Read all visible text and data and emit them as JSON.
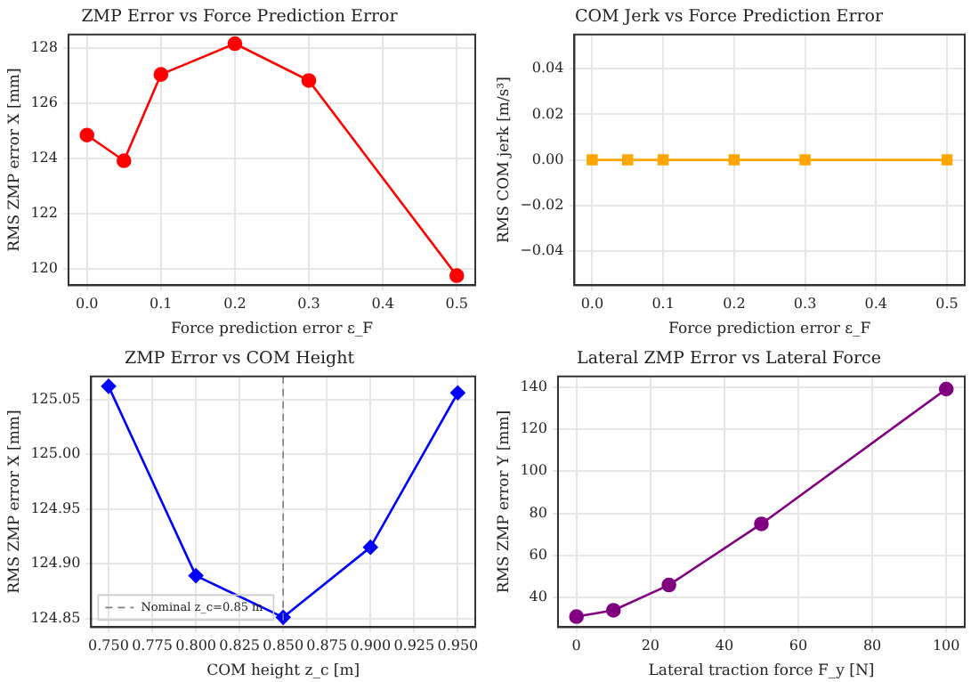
{
  "chart_data": [
    {
      "type": "line",
      "title": "ZMP Error vs Force Prediction Error",
      "xlabel": "Force prediction error ε_F",
      "ylabel": "RMS ZMP error X [mm]",
      "x": [
        0,
        0.05,
        0.1,
        0.2,
        0.3,
        0.5
      ],
      "series": [
        {
          "color": "#ff0000",
          "values": [
            124.85,
            123.92,
            127.05,
            128.17,
            126.83,
            119.75
          ]
        }
      ],
      "xlim": [
        -0.025,
        0.525
      ],
      "xticks": [
        {
          "value": 0,
          "label": "0.0"
        },
        {
          "value": 0.1,
          "label": "0.1"
        },
        {
          "value": 0.2,
          "label": "0.2"
        },
        {
          "value": 0.3,
          "label": "0.3"
        },
        {
          "value": 0.4,
          "label": "0.4"
        },
        {
          "value": 0.5,
          "label": "0.5"
        }
      ],
      "ylim": [
        119.4,
        128.5
      ],
      "yticks": [
        120,
        122,
        124,
        126,
        128
      ],
      "grid": true,
      "marker": "circle",
      "line_style": "solid"
    },
    {
      "type": "line",
      "title": "COM Jerk vs Force Prediction Error",
      "xlabel": "Force prediction error ε_F",
      "ylabel": "RMS COM jerk [m/s³]",
      "x": [
        0,
        0.05,
        0.1,
        0.2,
        0.3,
        0.5
      ],
      "series": [
        {
          "color": "#ffa500",
          "values": [
            0,
            0,
            0,
            0,
            0,
            0
          ]
        }
      ],
      "xlim": [
        -0.025,
        0.525
      ],
      "xticks": [
        {
          "value": 0,
          "label": "0.0"
        },
        {
          "value": 0.1,
          "label": "0.1"
        },
        {
          "value": 0.2,
          "label": "0.2"
        },
        {
          "value": 0.3,
          "label": "0.3"
        },
        {
          "value": 0.4,
          "label": "0.4"
        },
        {
          "value": 0.5,
          "label": "0.5"
        }
      ],
      "ylim": [
        -0.055,
        0.055
      ],
      "yticks": [
        {
          "value": -0.04,
          "label": "−0.04"
        },
        {
          "value": -0.02,
          "label": "−0.02"
        },
        {
          "value": 0,
          "label": "0.00"
        },
        {
          "value": 0.02,
          "label": "0.02"
        },
        {
          "value": 0.04,
          "label": "0.04"
        }
      ],
      "grid": true,
      "marker": "square",
      "line_style": "solid"
    },
    {
      "type": "line",
      "title": "ZMP Error vs COM Height",
      "xlabel": "COM height z_c [m]",
      "ylabel": "RMS ZMP error X [mm]",
      "x": [
        0.75,
        0.8,
        0.85,
        0.9,
        0.95
      ],
      "series": [
        {
          "color": "#0000ff",
          "values": [
            125.062,
            124.889,
            124.851,
            124.915,
            125.056
          ]
        }
      ],
      "xlim": [
        0.74,
        0.96
      ],
      "xticks": [
        {
          "value": 0.75,
          "label": "0.750"
        },
        {
          "value": 0.775,
          "label": "0.775"
        },
        {
          "value": 0.8,
          "label": "0.800"
        },
        {
          "value": 0.825,
          "label": "0.825"
        },
        {
          "value": 0.85,
          "label": "0.850"
        },
        {
          "value": 0.875,
          "label": "0.875"
        },
        {
          "value": 0.9,
          "label": "0.900"
        },
        {
          "value": 0.925,
          "label": "0.925"
        },
        {
          "value": 0.95,
          "label": "0.950"
        }
      ],
      "ylim": [
        124.842,
        125.071
      ],
      "yticks": [
        {
          "value": 124.85,
          "label": "124.85"
        },
        {
          "value": 124.9,
          "label": "124.90"
        },
        {
          "value": 124.95,
          "label": "124.95"
        },
        {
          "value": 125,
          "label": "125.00"
        },
        {
          "value": 125.05,
          "label": "125.05"
        }
      ],
      "ref_lines": [
        {
          "axis": "x",
          "value": 0.85,
          "label": "Nominal z_c=0.85 m",
          "color": "#808080",
          "line_style": "dashed"
        }
      ],
      "grid": true,
      "legend": "bottom left",
      "marker": "diamond",
      "line_style": "solid"
    },
    {
      "type": "line",
      "title": "Lateral ZMP Error vs Lateral Force",
      "xlabel": "Lateral traction force F_y [N]",
      "ylabel": "RMS ZMP error Y [mm]",
      "x": [
        0,
        10,
        25,
        50,
        100
      ],
      "series": [
        {
          "color": "#800080",
          "values": [
            31,
            34,
            46,
            75,
            139
          ]
        }
      ],
      "xlim": [
        -5,
        105
      ],
      "xticks": [
        0,
        20,
        40,
        60,
        80,
        100
      ],
      "ylim": [
        26,
        145
      ],
      "yticks": [
        40,
        60,
        80,
        100,
        120,
        140
      ],
      "grid": true,
      "marker": "circle",
      "line_style": "solid"
    }
  ]
}
